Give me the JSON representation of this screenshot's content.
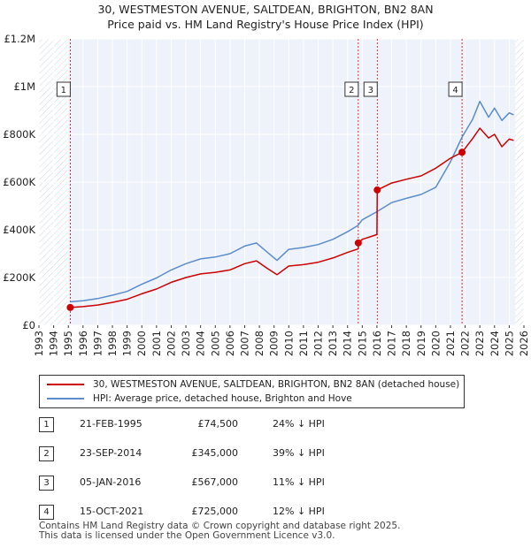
{
  "title_line1": "30, WESTMESTON AVENUE, SALTDEAN, BRIGHTON, BN2 8AN",
  "title_line2": "Price paid vs. HM Land Registry's House Price Index (HPI)",
  "chart_data": {
    "type": "line",
    "xlim": [
      1993,
      2026
    ],
    "ylim": [
      0,
      1200000
    ],
    "y_ticks": [
      {
        "value": 0,
        "label": "£0"
      },
      {
        "value": 200000,
        "label": "£200K"
      },
      {
        "value": 400000,
        "label": "£400K"
      },
      {
        "value": 600000,
        "label": "£600K"
      },
      {
        "value": 800000,
        "label": "£800K"
      },
      {
        "value": 1000000,
        "label": "£1M"
      },
      {
        "value": 1200000,
        "label": "£1.2M"
      }
    ],
    "x_ticks": [
      "1993",
      "1994",
      "1995",
      "1996",
      "1997",
      "1998",
      "1999",
      "2000",
      "2001",
      "2002",
      "2003",
      "2004",
      "2005",
      "2006",
      "2007",
      "2008",
      "2009",
      "2010",
      "2011",
      "2012",
      "2013",
      "2014",
      "2015",
      "2016",
      "2017",
      "2018",
      "2019",
      "2020",
      "2021",
      "2022",
      "2023",
      "2024",
      "2025",
      "2026"
    ],
    "series": [
      {
        "name": "HPI: Average price, detached house, Brighton and Hove",
        "color": "#5b8ccc",
        "x": [
          1995.1,
          1996,
          1997,
          1998,
          1999,
          2000,
          2001,
          2002,
          2003,
          2004,
          2005,
          2006,
          2007,
          2007.8,
          2008.5,
          2009.2,
          2010,
          2011,
          2012,
          2013,
          2014,
          2014.7,
          2015,
          2016,
          2017,
          2018,
          2019,
          2020,
          2021,
          2021.8,
          2022.5,
          2023,
          2023.6,
          2024,
          2024.5,
          2025,
          2025.3
        ],
        "y": [
          98000,
          103000,
          112000,
          126000,
          142000,
          172000,
          198000,
          232000,
          258000,
          278000,
          286000,
          300000,
          332000,
          345000,
          308000,
          272000,
          318000,
          326000,
          338000,
          360000,
          392000,
          418000,
          442000,
          476000,
          514000,
          532000,
          548000,
          578000,
          685000,
          790000,
          862000,
          938000,
          872000,
          910000,
          858000,
          890000,
          882000
        ]
      },
      {
        "name": "30, WESTMESTON AVENUE, SALTDEAN, BRIGHTON, BN2 8AN (detached house)",
        "color": "#cc0000",
        "x": [
          1995.13,
          1996,
          1997,
          1998,
          1999,
          2000,
          2001,
          2002,
          2003,
          2004,
          2005,
          2006,
          2007,
          2007.8,
          2008.5,
          2009.2,
          2010,
          2011,
          2012,
          2013,
          2014,
          2014.73,
          2014.74,
          2015,
          2015.5,
          2016.0,
          2016.02,
          2017,
          2018,
          2019,
          2020,
          2021,
          2021.79,
          2022.5,
          2023,
          2023.6,
          2024,
          2024.5,
          2025,
          2025.3
        ],
        "y": [
          74500,
          78000,
          85000,
          96000,
          109000,
          132000,
          152000,
          180000,
          200000,
          215000,
          222000,
          232000,
          258000,
          270000,
          240000,
          212000,
          248000,
          254000,
          264000,
          282000,
          305000,
          320000,
          345000,
          360000,
          370000,
          380000,
          567000,
          596000,
          612000,
          626000,
          658000,
          700000,
          725000,
          782000,
          826000,
          785000,
          800000,
          748000,
          780000,
          775000
        ]
      }
    ],
    "sales": [
      {
        "id": "1",
        "x": 1995.13,
        "y": 74500
      },
      {
        "id": "2",
        "x": 2014.73,
        "y": 345000
      },
      {
        "id": "3",
        "x": 2016.02,
        "y": 567000
      },
      {
        "id": "4",
        "x": 2021.79,
        "y": 725000
      }
    ],
    "shaded_ranges": [
      [
        1993,
        1995.0
      ],
      [
        2025.4,
        2026
      ]
    ]
  },
  "legend": {
    "property": "30, WESTMESTON AVENUE, SALTDEAN, BRIGHTON, BN2 8AN (detached house)",
    "hpi": "HPI: Average price, detached house, Brighton and Hove",
    "property_color": "#cc0000",
    "hpi_color": "#5b8ccc"
  },
  "transactions": [
    {
      "id": "1",
      "date": "21-FEB-1995",
      "price": "£74,500",
      "hpi": "24% ↓ HPI"
    },
    {
      "id": "2",
      "date": "23-SEP-2014",
      "price": "£345,000",
      "hpi": "39% ↓ HPI"
    },
    {
      "id": "3",
      "date": "05-JAN-2016",
      "price": "£567,000",
      "hpi": "11% ↓ HPI"
    },
    {
      "id": "4",
      "date": "15-OCT-2021",
      "price": "£725,000",
      "hpi": "12% ↓ HPI"
    }
  ],
  "footer_line1": "Contains HM Land Registry data © Crown copyright and database right 2025.",
  "footer_line2": "This data is licensed under the Open Government Licence v3.0."
}
